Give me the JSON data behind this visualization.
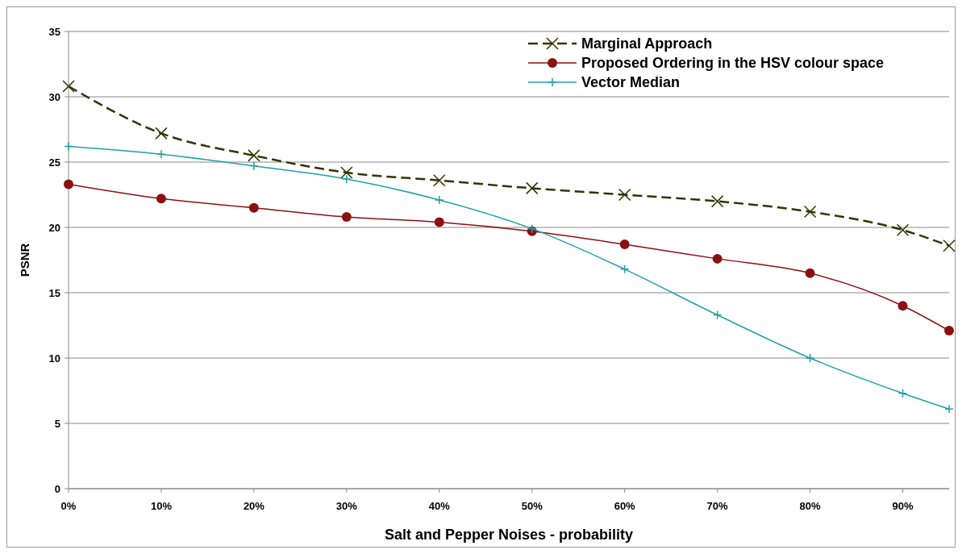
{
  "chart_data": {
    "type": "line",
    "xlabel": "Salt and Pepper Noises - probability",
    "ylabel": "PSNR",
    "x": [
      0,
      10,
      20,
      30,
      40,
      50,
      60,
      70,
      80,
      90,
      95
    ],
    "xlim": [
      0,
      95
    ],
    "xticks": [
      {
        "value": 0,
        "label": "0%"
      },
      {
        "value": 10,
        "label": "10%"
      },
      {
        "value": 20,
        "label": "20%"
      },
      {
        "value": 30,
        "label": "30%"
      },
      {
        "value": 40,
        "label": "40%"
      },
      {
        "value": 50,
        "label": "50%"
      },
      {
        "value": 60,
        "label": "60%"
      },
      {
        "value": 70,
        "label": "70%"
      },
      {
        "value": 80,
        "label": "80%"
      },
      {
        "value": 90,
        "label": "90%"
      }
    ],
    "ylim": [
      0,
      35
    ],
    "yticks": [
      0,
      5,
      10,
      15,
      20,
      25,
      30,
      35
    ],
    "grid": "y",
    "legend": "top right",
    "series": [
      {
        "name": "Marginal Approach",
        "color": "#333300",
        "marker": "cross",
        "line_style": "dashed",
        "values": [
          30.8,
          27.2,
          25.5,
          24.2,
          23.6,
          23.0,
          22.5,
          22.0,
          21.2,
          19.8,
          18.6
        ]
      },
      {
        "name": "Proposed Ordering in the HSV colour space",
        "color": "#8b1010",
        "marker": "circle",
        "line_style": "solid",
        "values": [
          23.3,
          22.2,
          21.5,
          20.8,
          20.4,
          19.7,
          18.7,
          17.6,
          16.5,
          14.0,
          12.1
        ]
      },
      {
        "name": "Vector Median",
        "color": "#1fa0a8",
        "marker": "cross",
        "line_style": "solid",
        "values": [
          26.2,
          25.6,
          24.7,
          23.7,
          22.1,
          19.9,
          16.8,
          13.3,
          10.0,
          7.3,
          6.1
        ]
      }
    ]
  }
}
